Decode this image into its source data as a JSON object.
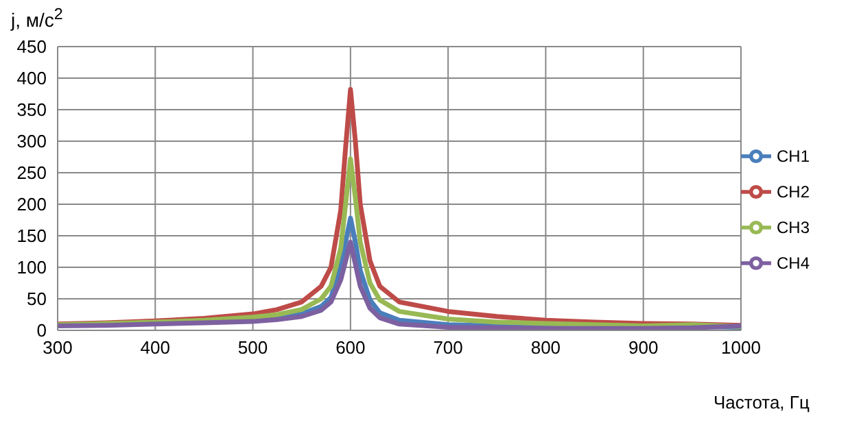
{
  "chart_data": {
    "type": "line",
    "xlabel": "Частота, Гц",
    "ylabel": "j, м/с$^{2}$",
    "x": [
      300,
      350,
      400,
      450,
      500,
      525,
      550,
      570,
      580,
      590,
      595,
      600,
      605,
      610,
      620,
      630,
      650,
      700,
      750,
      800,
      850,
      900,
      950,
      1000
    ],
    "series": [
      {
        "name": "CH1",
        "color": "#4a7ebb",
        "values": [
          8,
          9,
          11,
          13,
          16,
          20,
          26,
          38,
          52,
          100,
          140,
          178,
          140,
          95,
          48,
          28,
          16,
          9,
          7,
          6,
          6,
          5,
          6,
          5
        ]
      },
      {
        "name": "CH2",
        "color": "#be4b48",
        "values": [
          10,
          12,
          15,
          19,
          26,
          33,
          45,
          70,
          100,
          190,
          290,
          382,
          300,
          200,
          110,
          70,
          45,
          30,
          22,
          16,
          13,
          11,
          10,
          8
        ]
      },
      {
        "name": "CH3",
        "color": "#98b954",
        "values": [
          9,
          11,
          13,
          16,
          21,
          25,
          33,
          50,
          70,
          130,
          200,
          272,
          210,
          140,
          75,
          48,
          30,
          18,
          13,
          11,
          9,
          7,
          9,
          6
        ]
      },
      {
        "name": "CH4",
        "color": "#7d60a0",
        "values": [
          7,
          8,
          10,
          12,
          14,
          17,
          22,
          32,
          45,
          80,
          110,
          140,
          105,
          70,
          35,
          20,
          10,
          5,
          4,
          3,
          3,
          3,
          4,
          7
        ]
      }
    ],
    "xlim": [
      300,
      1000
    ],
    "xticks": [
      300,
      400,
      500,
      600,
      700,
      800,
      900,
      1000
    ],
    "ylim": [
      0,
      450
    ],
    "yticks": [
      0,
      50,
      100,
      150,
      200,
      250,
      300,
      350,
      400,
      450
    ],
    "grid": true,
    "legend": "right",
    "marker": "none",
    "line_style": "solid"
  }
}
